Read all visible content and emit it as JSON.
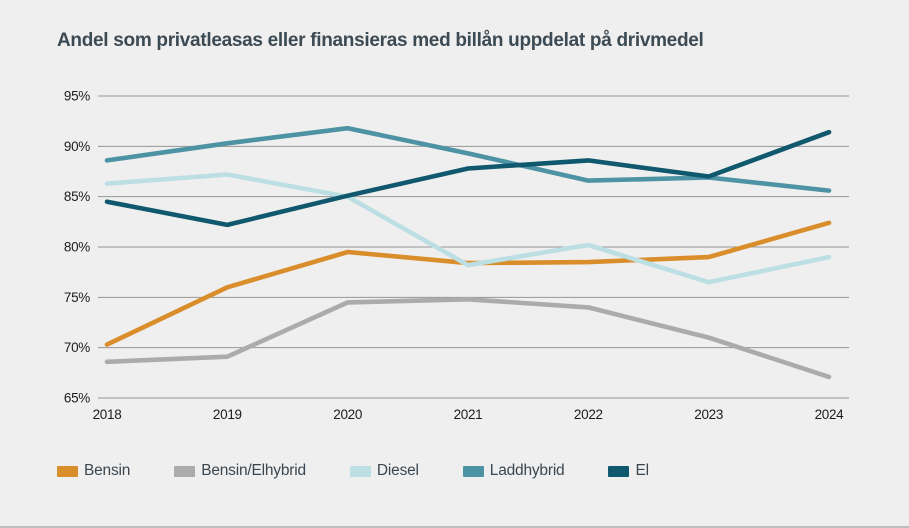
{
  "chart_data": {
    "type": "line",
    "title": "Andel som privatleasas eller finansieras med billån uppdelat på drivmedel",
    "categories": [
      "2018",
      "2019",
      "2020",
      "2021",
      "2022",
      "2023",
      "2024"
    ],
    "series": [
      {
        "name": "Bensin",
        "color": "#D98E2B",
        "values": [
          70.3,
          76.0,
          79.5,
          78.4,
          78.5,
          79.0,
          82.4
        ]
      },
      {
        "name": "Bensin/Elhybrid",
        "color": "#ABABAB",
        "values": [
          68.6,
          69.1,
          74.5,
          74.8,
          74.0,
          71.0,
          67.1
        ]
      },
      {
        "name": "Diesel",
        "color": "#BCDFE4",
        "values": [
          86.3,
          87.2,
          85.0,
          78.2,
          80.2,
          76.5,
          79.0
        ]
      },
      {
        "name": "Laddhybrid",
        "color": "#4D93A4",
        "values": [
          88.6,
          90.3,
          91.8,
          89.3,
          86.6,
          86.9,
          85.6
        ]
      },
      {
        "name": "El",
        "color": "#10586E",
        "values": [
          84.5,
          82.2,
          85.1,
          87.8,
          88.6,
          87.0,
          91.4
        ]
      }
    ],
    "y_ticks": [
      95,
      90,
      85,
      80,
      75,
      70,
      65
    ],
    "y_tick_suffix": "%",
    "ylim": [
      65,
      95
    ],
    "xlabel": "",
    "ylabel": "",
    "grid": true,
    "legend_position": "bottom"
  },
  "style": {
    "background": "#F0EFEF",
    "gridline_color": "#969696",
    "title_color": "#3C4A54",
    "axis_text_color": "#1C1C1C",
    "legend_text_color": "#3A4750"
  }
}
